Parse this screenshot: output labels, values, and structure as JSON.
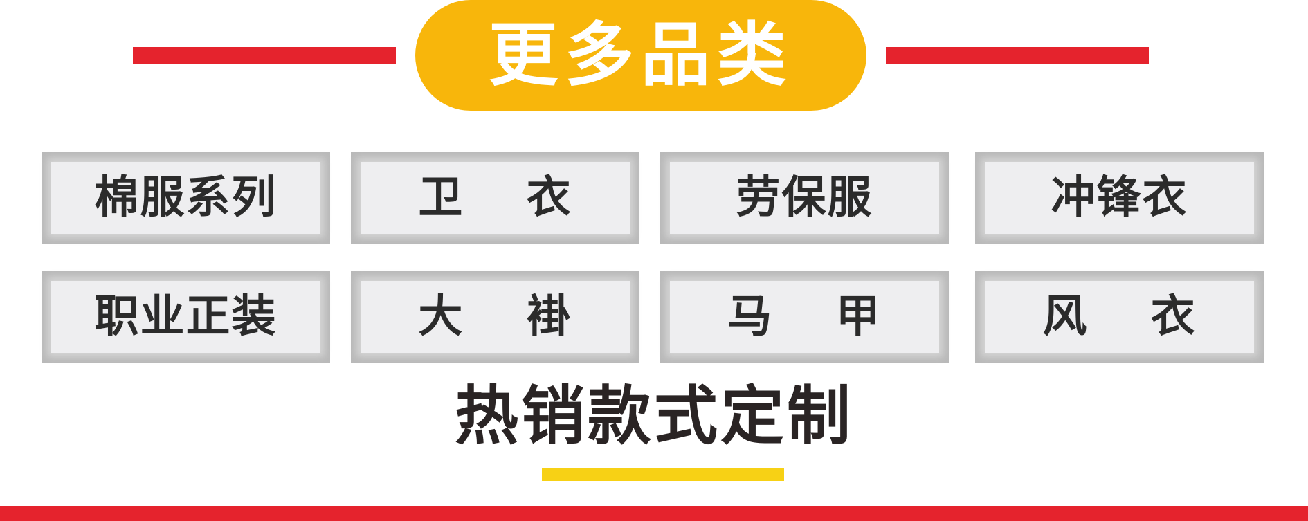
{
  "header": {
    "title": "更多品类",
    "accent_color": "#f8b60b",
    "line_color": "#e5232d"
  },
  "categories": [
    {
      "label": "棉服系列"
    },
    {
      "label": "卫　 衣"
    },
    {
      "label": "劳保服"
    },
    {
      "label": "冲锋衣"
    },
    {
      "label": "职业正装"
    },
    {
      "label": "大　 褂"
    },
    {
      "label": "马　 甲"
    },
    {
      "label": "风　 衣"
    }
  ],
  "footer": {
    "subtitle": "热销款式定制",
    "underline_color": "#f7d115",
    "bar_color": "#e5232d"
  }
}
